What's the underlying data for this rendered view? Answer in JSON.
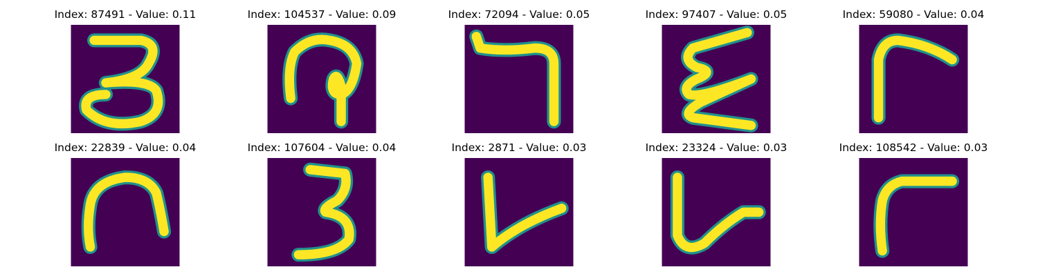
{
  "colors": {
    "background": "#440154",
    "stroke_core": "#fde725",
    "stroke_edge": "#21918c"
  },
  "panels": [
    {
      "title": "Index: 87491 - Value: 0.11"
    },
    {
      "title": "Index: 104537 - Value: 0.09"
    },
    {
      "title": "Index: 72094 - Value: 0.05"
    },
    {
      "title": "Index: 97407 - Value: 0.05"
    },
    {
      "title": "Index: 59080 - Value: 0.04"
    },
    {
      "title": "Index: 22839 - Value: 0.04"
    },
    {
      "title": "Index: 107604 - Value: 0.04"
    },
    {
      "title": "Index: 2871 - Value: 0.03"
    },
    {
      "title": "Index: 23324 - Value: 0.03"
    },
    {
      "title": "Index: 108542 - Value: 0.03"
    }
  ]
}
